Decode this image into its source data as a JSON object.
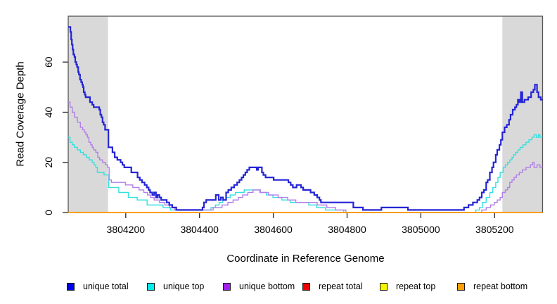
{
  "chart_data": {
    "type": "line",
    "subtype": "step",
    "title": "",
    "xlabel": "Coordinate in Reference Genome",
    "ylabel": "Read Coverage Depth",
    "xlim": [
      3804044,
      3805330
    ],
    "ylim": [
      0,
      78.3
    ],
    "x_ticks": [
      3804200,
      3804400,
      3804600,
      3804800,
      3805000,
      3805200
    ],
    "y_ticks": [
      0,
      20,
      40,
      60
    ],
    "grid": false,
    "legend_position": "bottom",
    "shade_color": "#d9d9d9",
    "shaded_regions": [
      {
        "x0": 3804044,
        "x1": 3804152
      },
      {
        "x0": 3805221,
        "x1": 3805330
      }
    ],
    "axis_color": "#555555",
    "tick_color": "#2a2a2a",
    "draw_order": [
      3,
      4,
      1,
      2,
      0,
      5
    ],
    "series": [
      {
        "name": "unique total",
        "color": "#2424d6",
        "swatch": "#0000ee",
        "width": 2.2,
        "step_points": [
          [
            3804044,
            74
          ],
          [
            3804050,
            72
          ],
          [
            3804052,
            69
          ],
          [
            3804054,
            67
          ],
          [
            3804056,
            65
          ],
          [
            3804058,
            63
          ],
          [
            3804061,
            62
          ],
          [
            3804063,
            60
          ],
          [
            3804066,
            59
          ],
          [
            3804068,
            58
          ],
          [
            3804071,
            56
          ],
          [
            3804073,
            55
          ],
          [
            3804076,
            53
          ],
          [
            3804079,
            52
          ],
          [
            3804082,
            51
          ],
          [
            3804084,
            50
          ],
          [
            3804086,
            48
          ],
          [
            3804089,
            47
          ],
          [
            3804091,
            46
          ],
          [
            3804103,
            44
          ],
          [
            3804109,
            43
          ],
          [
            3804113,
            42
          ],
          [
            3804128,
            41
          ],
          [
            3804131,
            39
          ],
          [
            3804134,
            38
          ],
          [
            3804137,
            36
          ],
          [
            3804140,
            35
          ],
          [
            3804144,
            33
          ],
          [
            3804153,
            26
          ],
          [
            3804164,
            24
          ],
          [
            3804170,
            22
          ],
          [
            3804177,
            21
          ],
          [
            3804186,
            20
          ],
          [
            3804191,
            19
          ],
          [
            3804196,
            18
          ],
          [
            3804215,
            16
          ],
          [
            3804232,
            14
          ],
          [
            3804238,
            13
          ],
          [
            3804244,
            12
          ],
          [
            3804251,
            11
          ],
          [
            3804257,
            10
          ],
          [
            3804262,
            9
          ],
          [
            3804266,
            8
          ],
          [
            3804272,
            7
          ],
          [
            3804277,
            8
          ],
          [
            3804282,
            6
          ],
          [
            3804286,
            7
          ],
          [
            3804291,
            6
          ],
          [
            3804296,
            5
          ],
          [
            3804311,
            4
          ],
          [
            3804318,
            3
          ],
          [
            3804326,
            2
          ],
          [
            3804337,
            1
          ],
          [
            3804408,
            2
          ],
          [
            3804412,
            4
          ],
          [
            3804418,
            5
          ],
          [
            3804444,
            7
          ],
          [
            3804452,
            5
          ],
          [
            3804458,
            6
          ],
          [
            3804464,
            5
          ],
          [
            3804472,
            8
          ],
          [
            3804478,
            9
          ],
          [
            3804486,
            10
          ],
          [
            3804494,
            11
          ],
          [
            3804502,
            12
          ],
          [
            3804508,
            13
          ],
          [
            3804514,
            14
          ],
          [
            3804519,
            15
          ],
          [
            3804524,
            16
          ],
          [
            3804529,
            17
          ],
          [
            3804535,
            18
          ],
          [
            3804555,
            17
          ],
          [
            3804559,
            18
          ],
          [
            3804569,
            16
          ],
          [
            3804573,
            15
          ],
          [
            3804579,
            14
          ],
          [
            3804601,
            13
          ],
          [
            3804641,
            12
          ],
          [
            3804647,
            11
          ],
          [
            3804653,
            10
          ],
          [
            3804663,
            11
          ],
          [
            3804675,
            10
          ],
          [
            3804681,
            9
          ],
          [
            3804701,
            8
          ],
          [
            3804711,
            7
          ],
          [
            3804719,
            6
          ],
          [
            3804725,
            5
          ],
          [
            3804729,
            4
          ],
          [
            3804817,
            2
          ],
          [
            3804843,
            1
          ],
          [
            3804893,
            2
          ],
          [
            3804965,
            1
          ],
          [
            3805117,
            2
          ],
          [
            3805129,
            3
          ],
          [
            3805141,
            4
          ],
          [
            3805153,
            5
          ],
          [
            3805159,
            6
          ],
          [
            3805165,
            8
          ],
          [
            3805171,
            9
          ],
          [
            3805177,
            12
          ],
          [
            3805181,
            13
          ],
          [
            3805187,
            16
          ],
          [
            3805193,
            18
          ],
          [
            3805197,
            20
          ],
          [
            3805203,
            23
          ],
          [
            3805207,
            25
          ],
          [
            3805213,
            27
          ],
          [
            3805217,
            29
          ],
          [
            3805221,
            32
          ],
          [
            3805227,
            34
          ],
          [
            3805233,
            35
          ],
          [
            3805239,
            37
          ],
          [
            3805243,
            39
          ],
          [
            3805249,
            41
          ],
          [
            3805255,
            42
          ],
          [
            3805259,
            43
          ],
          [
            3805263,
            45
          ],
          [
            3805267,
            44
          ],
          [
            3805271,
            48
          ],
          [
            3805275,
            44
          ],
          [
            3805281,
            45
          ],
          [
            3805291,
            46
          ],
          [
            3805299,
            48
          ],
          [
            3805305,
            49
          ],
          [
            3805309,
            51
          ],
          [
            3805315,
            48
          ],
          [
            3805319,
            46
          ],
          [
            3805325,
            45
          ]
        ]
      },
      {
        "name": "unique top",
        "color": "#35e0e0",
        "swatch": "#00eded",
        "width": 1.4,
        "step_points": [
          [
            3804044,
            30
          ],
          [
            3804049,
            28
          ],
          [
            3804055,
            27
          ],
          [
            3804061,
            26
          ],
          [
            3804069,
            25
          ],
          [
            3804077,
            24
          ],
          [
            3804085,
            23
          ],
          [
            3804093,
            22
          ],
          [
            3804101,
            21
          ],
          [
            3804109,
            20
          ],
          [
            3804114,
            19
          ],
          [
            3804119,
            18
          ],
          [
            3804123,
            16
          ],
          [
            3804141,
            15
          ],
          [
            3804154,
            10
          ],
          [
            3804181,
            8
          ],
          [
            3804207,
            6
          ],
          [
            3804231,
            5
          ],
          [
            3804258,
            3
          ],
          [
            3804301,
            2
          ],
          [
            3804321,
            1
          ],
          [
            3804431,
            2
          ],
          [
            3804443,
            3
          ],
          [
            3804453,
            4
          ],
          [
            3804463,
            5
          ],
          [
            3804473,
            6
          ],
          [
            3804483,
            7
          ],
          [
            3804497,
            8
          ],
          [
            3804521,
            9
          ],
          [
            3804563,
            8
          ],
          [
            3804581,
            7
          ],
          [
            3804599,
            6
          ],
          [
            3804623,
            5
          ],
          [
            3804646,
            4
          ],
          [
            3804696,
            3
          ],
          [
            3804717,
            2
          ],
          [
            3804741,
            1
          ],
          [
            3804791,
            0
          ],
          [
            3805149,
            1
          ],
          [
            3805159,
            2
          ],
          [
            3805167,
            4
          ],
          [
            3805177,
            6
          ],
          [
            3805187,
            8
          ],
          [
            3805195,
            10
          ],
          [
            3805203,
            12
          ],
          [
            3805209,
            14
          ],
          [
            3805215,
            16
          ],
          [
            3805223,
            18
          ],
          [
            3805229,
            19
          ],
          [
            3805235,
            20
          ],
          [
            3805241,
            21
          ],
          [
            3805247,
            22
          ],
          [
            3805251,
            23
          ],
          [
            3805257,
            24
          ],
          [
            3805263,
            25
          ],
          [
            3805269,
            26
          ],
          [
            3805277,
            27
          ],
          [
            3805285,
            28
          ],
          [
            3805293,
            29
          ],
          [
            3805301,
            30
          ],
          [
            3805307,
            31
          ],
          [
            3805313,
            30
          ],
          [
            3805319,
            31
          ],
          [
            3805323,
            30
          ]
        ]
      },
      {
        "name": "unique bottom",
        "color": "#b27fe8",
        "swatch": "#a020f0",
        "width": 1.4,
        "step_points": [
          [
            3804044,
            44
          ],
          [
            3804049,
            42
          ],
          [
            3804055,
            40
          ],
          [
            3804061,
            38
          ],
          [
            3804069,
            36
          ],
          [
            3804077,
            34
          ],
          [
            3804083,
            33
          ],
          [
            3804088,
            32
          ],
          [
            3804092,
            31
          ],
          [
            3804096,
            30
          ],
          [
            3804100,
            28
          ],
          [
            3804105,
            27
          ],
          [
            3804109,
            26
          ],
          [
            3804113,
            25
          ],
          [
            3804119,
            24
          ],
          [
            3804124,
            22
          ],
          [
            3804129,
            21
          ],
          [
            3804137,
            20
          ],
          [
            3804145,
            19
          ],
          [
            3804151,
            18
          ],
          [
            3804155,
            13
          ],
          [
            3804161,
            12
          ],
          [
            3804199,
            11
          ],
          [
            3804219,
            10
          ],
          [
            3804236,
            9
          ],
          [
            3804249,
            8
          ],
          [
            3804259,
            7
          ],
          [
            3804267,
            6
          ],
          [
            3804277,
            5
          ],
          [
            3804291,
            4
          ],
          [
            3804306,
            3
          ],
          [
            3804319,
            2
          ],
          [
            3804333,
            1
          ],
          [
            3804437,
            2
          ],
          [
            3804461,
            3
          ],
          [
            3804477,
            4
          ],
          [
            3804491,
            5
          ],
          [
            3804505,
            6
          ],
          [
            3804517,
            7
          ],
          [
            3804531,
            8
          ],
          [
            3804545,
            9
          ],
          [
            3804565,
            8
          ],
          [
            3804587,
            7
          ],
          [
            3804613,
            6
          ],
          [
            3804639,
            5
          ],
          [
            3804661,
            4
          ],
          [
            3804719,
            3
          ],
          [
            3804745,
            2
          ],
          [
            3804769,
            1
          ],
          [
            3804797,
            0
          ],
          [
            3805165,
            1
          ],
          [
            3805177,
            2
          ],
          [
            3805189,
            3
          ],
          [
            3805199,
            4
          ],
          [
            3805207,
            5
          ],
          [
            3805215,
            6
          ],
          [
            3805221,
            8
          ],
          [
            3805229,
            9
          ],
          [
            3805235,
            10
          ],
          [
            3805241,
            12
          ],
          [
            3805247,
            13
          ],
          [
            3805253,
            14
          ],
          [
            3805259,
            15
          ],
          [
            3805267,
            16
          ],
          [
            3805275,
            17
          ],
          [
            3805285,
            18
          ],
          [
            3805297,
            19
          ],
          [
            3805303,
            20
          ],
          [
            3805307,
            18
          ],
          [
            3805315,
            19
          ],
          [
            3805323,
            18
          ]
        ]
      },
      {
        "name": "repeat total",
        "color": "#e00000",
        "swatch": "#ee0000",
        "width": 1.4,
        "step_points": [
          [
            3804044,
            0
          ]
        ]
      },
      {
        "name": "repeat top",
        "color": "#f0f000",
        "swatch": "#f5f500",
        "width": 1.4,
        "step_points": [
          [
            3804044,
            0
          ]
        ]
      },
      {
        "name": "repeat bottom",
        "color": "#ff9d00",
        "swatch": "#ffa000",
        "width": 1.8,
        "step_points": [
          [
            3804044,
            0
          ]
        ]
      }
    ]
  }
}
